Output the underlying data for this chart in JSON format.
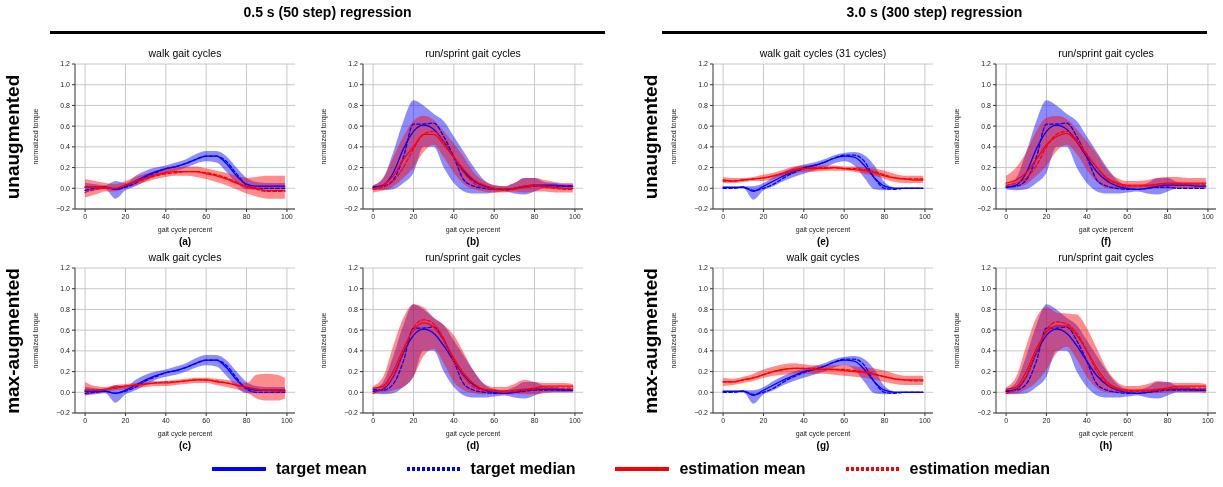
{
  "chart_data": [
    {
      "type": "line",
      "title": "walk gait cycles",
      "xlabel": "gait cycle percent",
      "ylabel": "normalized torque",
      "annotations": [
        "0.5 s (50 step) regression",
        "unaugmented",
        "(a)"
      ],
      "x": [
        0,
        5,
        10,
        15,
        20,
        25,
        30,
        35,
        40,
        45,
        50,
        55,
        60,
        65,
        70,
        75,
        80,
        85,
        90,
        95,
        99
      ],
      "xlim": [
        -5,
        104
      ],
      "xticks": [
        0,
        20,
        40,
        60,
        80,
        100
      ],
      "ylim": [
        -0.2,
        1.2
      ],
      "yticks": [
        {
          "value": -0.2,
          "label": "−0.2"
        },
        {
          "value": 0,
          "label": "0.0"
        },
        {
          "value": 0.2,
          "label": "0.2"
        },
        {
          "value": 0.4,
          "label": "0.4"
        },
        {
          "value": 0.6,
          "label": "0.6"
        },
        {
          "value": 0.8,
          "label": "0.8"
        },
        {
          "value": 1,
          "label": "1.0"
        },
        {
          "value": 1.2,
          "label": "1.2"
        }
      ],
      "grid": true,
      "series": [
        {
          "color": "#0000ff",
          "values": [
            0.01,
            0.01,
            0.01,
            -0.01,
            0.02,
            0.07,
            0.12,
            0.16,
            0.19,
            0.21,
            0.24,
            0.28,
            0.31,
            0.31,
            0.24,
            0.12,
            0.04,
            0.02,
            0.02,
            0.02,
            0.02
          ],
          "lower": [
            -0.03,
            -0.02,
            -0.01,
            -0.1,
            -0.02,
            0.02,
            0.07,
            0.12,
            0.15,
            0.17,
            0.2,
            0.24,
            0.26,
            0.25,
            0.16,
            0.05,
            -0.01,
            -0.01,
            -0.01,
            -0.01,
            -0.01
          ],
          "upper": [
            0.05,
            0.04,
            0.03,
            0.07,
            0.05,
            0.12,
            0.17,
            0.2,
            0.22,
            0.25,
            0.28,
            0.33,
            0.36,
            0.36,
            0.31,
            0.2,
            0.1,
            0.06,
            0.05,
            0.05,
            0.05
          ]
        },
        {
          "color": "#0000ff",
          "line_style": "dashed",
          "values": [
            -0.02,
            0,
            0.01,
            -0.01,
            0.01,
            0.05,
            0.11,
            0.15,
            0.19,
            0.21,
            0.24,
            0.28,
            0.31,
            0.31,
            0.26,
            0.14,
            0.03,
            0,
            0,
            0,
            0
          ]
        },
        {
          "color": "#ff0000",
          "values": [
            0.01,
            0.01,
            0.01,
            0,
            0.03,
            0.07,
            0.1,
            0.13,
            0.15,
            0.16,
            0.16,
            0.16,
            0.14,
            0.12,
            0.09,
            0.05,
            0.02,
            0,
            -0.02,
            -0.02,
            -0.02
          ],
          "lower": [
            -0.09,
            -0.06,
            -0.03,
            -0.03,
            0,
            0.03,
            0.06,
            0.09,
            0.11,
            0.12,
            0.12,
            0.11,
            0.09,
            0.06,
            0.03,
            -0.01,
            -0.05,
            -0.08,
            -0.1,
            -0.1,
            -0.1
          ],
          "upper": [
            0.09,
            0.07,
            0.05,
            0.04,
            0.07,
            0.11,
            0.14,
            0.17,
            0.19,
            0.2,
            0.21,
            0.21,
            0.19,
            0.17,
            0.15,
            0.12,
            0.1,
            0.11,
            0.12,
            0.12,
            0.12
          ]
        },
        {
          "color": "#ff0000",
          "line_style": "dashed",
          "values": [
            -0.04,
            -0.01,
            0,
            0,
            0.03,
            0.06,
            0.09,
            0.12,
            0.14,
            0.15,
            0.16,
            0.16,
            0.15,
            0.13,
            0.1,
            0.06,
            0.01,
            -0.01,
            -0.03,
            -0.03,
            -0.03
          ]
        }
      ]
    },
    {
      "type": "line",
      "title": "run/sprint gait cycles",
      "xlabel": "gait cycle percent",
      "ylabel": "normalized torque",
      "annotations": [
        "(b)"
      ],
      "x": [
        0,
        5,
        10,
        15,
        20,
        25,
        30,
        35,
        40,
        45,
        50,
        55,
        60,
        65,
        70,
        75,
        80,
        85,
        90,
        95,
        99
      ],
      "xlim": [
        -5,
        104
      ],
      "xticks": [
        0,
        20,
        40,
        60,
        80,
        100
      ],
      "ylim": [
        -0.2,
        1.2
      ],
      "yticks": [
        {
          "value": -0.2,
          "label": "−0.2"
        },
        {
          "value": 0,
          "label": "0.0"
        },
        {
          "value": 0.2,
          "label": "0.2"
        },
        {
          "value": 0.4,
          "label": "0.4"
        },
        {
          "value": 0.6,
          "label": "0.6"
        },
        {
          "value": 0.8,
          "label": "0.8"
        },
        {
          "value": 1,
          "label": "1.0"
        },
        {
          "value": 1.2,
          "label": "1.2"
        }
      ],
      "grid": true,
      "series": [
        {
          "color": "#0000ff",
          "values": [
            0.01,
            0.03,
            0.15,
            0.38,
            0.55,
            0.61,
            0.57,
            0.45,
            0.3,
            0.16,
            0.07,
            0.02,
            0,
            -0.01,
            0,
            0.02,
            0.03,
            0.03,
            0.03,
            0.02,
            0.02
          ],
          "lower": [
            -0.01,
            -0.02,
            -0.01,
            0.05,
            0.15,
            0.4,
            0.4,
            0.2,
            0.05,
            -0.03,
            -0.05,
            -0.05,
            -0.04,
            -0.03,
            -0.05,
            -0.06,
            -0.03,
            0,
            0,
            0,
            0
          ],
          "upper": [
            0.03,
            0.1,
            0.35,
            0.65,
            0.85,
            0.8,
            0.72,
            0.65,
            0.5,
            0.35,
            0.2,
            0.08,
            0.03,
            0.02,
            0.05,
            0.1,
            0.1,
            0.06,
            0.05,
            0.04,
            0.04
          ]
        },
        {
          "color": "#0000ff",
          "line_style": "dashed",
          "values": [
            0.01,
            0.02,
            0.08,
            0.3,
            0.62,
            0.62,
            0.63,
            0.5,
            0.3,
            0.08,
            0.02,
            0,
            -0.01,
            -0.01,
            0,
            0.01,
            0.02,
            0.02,
            0.02,
            0.02,
            0.02
          ]
        },
        {
          "color": "#ff0000",
          "values": [
            0,
            0.03,
            0.12,
            0.28,
            0.4,
            0.52,
            0.52,
            0.42,
            0.3,
            0.18,
            0.08,
            0.03,
            0,
            -0.01,
            0,
            0.02,
            0.03,
            0.02,
            0.01,
            0,
            0
          ],
          "lower": [
            -0.04,
            -0.02,
            0.02,
            0.1,
            0.2,
            0.35,
            0.42,
            0.3,
            0.15,
            0.04,
            -0.01,
            -0.03,
            -0.04,
            -0.04,
            -0.03,
            -0.04,
            -0.03,
            -0.03,
            -0.04,
            -0.04,
            -0.04
          ],
          "upper": [
            0.03,
            0.1,
            0.3,
            0.5,
            0.65,
            0.7,
            0.66,
            0.55,
            0.43,
            0.3,
            0.15,
            0.07,
            0.03,
            0.02,
            0.05,
            0.1,
            0.1,
            0.08,
            0.06,
            0.05,
            0.05
          ]
        },
        {
          "color": "#ff0000",
          "line_style": "dashed",
          "values": [
            -0.01,
            0.01,
            0.07,
            0.2,
            0.38,
            0.52,
            0.55,
            0.45,
            0.3,
            0.15,
            0.05,
            0.01,
            -0.01,
            -0.02,
            -0.01,
            0.01,
            0.02,
            0.01,
            0,
            -0.01,
            -0.01
          ]
        }
      ]
    },
    {
      "type": "line",
      "title": "walk gait cycles (31 cycles)",
      "xlabel": "gait cycle percent",
      "ylabel": "normalized torque",
      "annotations": [
        "3.0 s (300 step) regression",
        "unaugmented",
        "(e)"
      ],
      "x": [
        0,
        5,
        10,
        15,
        20,
        25,
        30,
        35,
        40,
        45,
        50,
        55,
        60,
        65,
        70,
        75,
        80,
        85,
        90,
        95,
        99
      ],
      "xlim": [
        -5,
        104
      ],
      "xticks": [
        0,
        20,
        40,
        60,
        80,
        100
      ],
      "ylim": [
        -0.2,
        1.2
      ],
      "yticks": [
        {
          "value": -0.2,
          "label": "−0.2"
        },
        {
          "value": 0,
          "label": "0.0"
        },
        {
          "value": 0.2,
          "label": "0.2"
        },
        {
          "value": 0.4,
          "label": "0.4"
        },
        {
          "value": 0.6,
          "label": "0.6"
        },
        {
          "value": 0.8,
          "label": "0.8"
        },
        {
          "value": 1,
          "label": "1.0"
        },
        {
          "value": 1.2,
          "label": "1.2"
        }
      ],
      "grid": true,
      "series": [
        {
          "color": "#0000ff",
          "values": [
            0.01,
            0.01,
            0.01,
            -0.03,
            0.02,
            0.07,
            0.12,
            0.16,
            0.2,
            0.22,
            0.25,
            0.29,
            0.31,
            0.3,
            0.22,
            0.1,
            0.02,
            0,
            0,
            0,
            0
          ],
          "lower": [
            0,
            0,
            0,
            -0.11,
            -0.02,
            0.02,
            0.07,
            0.11,
            0.14,
            0.17,
            0.2,
            0.24,
            0.26,
            0.22,
            0.1,
            -0.01,
            -0.02,
            -0.01,
            0,
            0,
            0
          ],
          "upper": [
            0.01,
            0.01,
            0.02,
            0.02,
            0.05,
            0.11,
            0.16,
            0.2,
            0.23,
            0.25,
            0.28,
            0.32,
            0.34,
            0.35,
            0.32,
            0.22,
            0.06,
            0.01,
            0.01,
            0.01,
            0.01
          ]
        },
        {
          "color": "#0000ff",
          "line_style": "dashed",
          "values": [
            0,
            0,
            0.01,
            -0.02,
            0,
            0.04,
            0.1,
            0.15,
            0.19,
            0.22,
            0.25,
            0.29,
            0.32,
            0.32,
            0.26,
            0.1,
            0,
            -0.01,
            0,
            0,
            0
          ]
        },
        {
          "color": "#ff0000",
          "values": [
            0.08,
            0.07,
            0.08,
            0.09,
            0.1,
            0.12,
            0.15,
            0.18,
            0.19,
            0.19,
            0.19,
            0.2,
            0.19,
            0.18,
            0.17,
            0.15,
            0.12,
            0.1,
            0.09,
            0.08,
            0.08
          ],
          "lower": [
            0.05,
            0.05,
            0.06,
            0.07,
            0.07,
            0.09,
            0.12,
            0.14,
            0.16,
            0.16,
            0.17,
            0.17,
            0.17,
            0.16,
            0.14,
            0.12,
            0.09,
            0.06,
            0.05,
            0.05,
            0.05
          ],
          "upper": [
            0.11,
            0.1,
            0.1,
            0.11,
            0.13,
            0.15,
            0.18,
            0.21,
            0.22,
            0.22,
            0.22,
            0.22,
            0.21,
            0.21,
            0.2,
            0.19,
            0.17,
            0.14,
            0.12,
            0.12,
            0.12
          ]
        },
        {
          "color": "#ff0000",
          "line_style": "dashed",
          "values": [
            0.07,
            0.07,
            0.08,
            0.09,
            0.1,
            0.12,
            0.14,
            0.17,
            0.19,
            0.2,
            0.2,
            0.2,
            0.19,
            0.19,
            0.18,
            0.16,
            0.13,
            0.1,
            0.09,
            0.09,
            0.09
          ]
        }
      ]
    },
    {
      "type": "line",
      "title": "run/sprint gait cycles",
      "xlabel": "gait cycle percent",
      "ylabel": "normalized torque",
      "annotations": [
        "(f)"
      ],
      "x": [
        0,
        5,
        10,
        15,
        20,
        25,
        30,
        35,
        40,
        45,
        50,
        55,
        60,
        65,
        70,
        75,
        80,
        85,
        90,
        95,
        99
      ],
      "xlim": [
        -5,
        104
      ],
      "xticks": [
        0,
        20,
        40,
        60,
        80,
        100
      ],
      "ylim": [
        -0.2,
        1.2
      ],
      "yticks": [
        {
          "value": -0.2,
          "label": "−0.2"
        },
        {
          "value": 0,
          "label": "0.0"
        },
        {
          "value": 0.2,
          "label": "0.2"
        },
        {
          "value": 0.4,
          "label": "0.4"
        },
        {
          "value": 0.6,
          "label": "0.6"
        },
        {
          "value": 0.8,
          "label": "0.8"
        },
        {
          "value": 1,
          "label": "1.0"
        },
        {
          "value": 1.2,
          "label": "1.2"
        }
      ],
      "grid": true,
      "series": [
        {
          "color": "#0000ff",
          "values": [
            0.01,
            0.03,
            0.15,
            0.38,
            0.55,
            0.61,
            0.57,
            0.45,
            0.3,
            0.16,
            0.07,
            0.02,
            0,
            -0.01,
            0,
            0.02,
            0.03,
            0.03,
            0.03,
            0.02,
            0.02
          ],
          "lower": [
            -0.01,
            -0.02,
            -0.01,
            0.05,
            0.15,
            0.4,
            0.4,
            0.2,
            0.05,
            -0.03,
            -0.05,
            -0.05,
            -0.04,
            -0.03,
            -0.05,
            -0.06,
            -0.03,
            0,
            0,
            0,
            0
          ],
          "upper": [
            0.03,
            0.1,
            0.35,
            0.65,
            0.85,
            0.8,
            0.72,
            0.65,
            0.5,
            0.35,
            0.2,
            0.08,
            0.03,
            0.02,
            0.05,
            0.1,
            0.1,
            0.06,
            0.05,
            0.04,
            0.04
          ]
        },
        {
          "color": "#0000ff",
          "line_style": "dashed",
          "values": [
            0.01,
            0.02,
            0.08,
            0.3,
            0.62,
            0.62,
            0.63,
            0.5,
            0.3,
            0.08,
            0.02,
            0,
            -0.01,
            -0.01,
            0,
            0.01,
            0.01,
            0,
            0,
            0,
            0
          ]
        },
        {
          "color": "#ff0000",
          "values": [
            0.05,
            0.08,
            0.15,
            0.28,
            0.42,
            0.5,
            0.53,
            0.45,
            0.32,
            0.2,
            0.1,
            0.05,
            0.03,
            0.03,
            0.03,
            0.04,
            0.05,
            0.05,
            0.05,
            0.05,
            0.05
          ],
          "lower": [
            0,
            0.01,
            0.04,
            0.12,
            0.22,
            0.36,
            0.42,
            0.33,
            0.18,
            0.06,
            0,
            -0.01,
            -0.01,
            0,
            0,
            0,
            0,
            0,
            0,
            0,
            0
          ],
          "upper": [
            0.12,
            0.2,
            0.35,
            0.55,
            0.68,
            0.7,
            0.67,
            0.57,
            0.45,
            0.33,
            0.18,
            0.1,
            0.07,
            0.07,
            0.08,
            0.1,
            0.11,
            0.11,
            0.1,
            0.1,
            0.1
          ]
        },
        {
          "color": "#ff0000",
          "line_style": "dashed",
          "values": [
            0.03,
            0.05,
            0.1,
            0.22,
            0.4,
            0.52,
            0.55,
            0.47,
            0.33,
            0.2,
            0.09,
            0.04,
            0.02,
            0.02,
            0.02,
            0.03,
            0.04,
            0.04,
            0.04,
            0.04,
            0.04
          ]
        }
      ]
    },
    {
      "type": "line",
      "title": "walk gait cycles",
      "xlabel": "gait cycle percent",
      "ylabel": "normalized torque",
      "annotations": [
        "max-augmented",
        "(c)"
      ],
      "x": [
        0,
        5,
        10,
        15,
        20,
        25,
        30,
        35,
        40,
        45,
        50,
        55,
        60,
        65,
        70,
        75,
        80,
        85,
        90,
        95,
        99
      ],
      "xlim": [
        -5,
        104
      ],
      "xticks": [
        0,
        20,
        40,
        60,
        80,
        100
      ],
      "ylim": [
        -0.2,
        1.2
      ],
      "yticks": [
        {
          "value": -0.2,
          "label": "−0.2"
        },
        {
          "value": 0,
          "label": "0.0"
        },
        {
          "value": 0.2,
          "label": "0.2"
        },
        {
          "value": 0.4,
          "label": "0.4"
        },
        {
          "value": 0.6,
          "label": "0.6"
        },
        {
          "value": 0.8,
          "label": "0.8"
        },
        {
          "value": 1,
          "label": "1.0"
        },
        {
          "value": 1.2,
          "label": "1.2"
        }
      ],
      "grid": true,
      "series": [
        {
          "color": "#0000ff",
          "values": [
            0.01,
            0.01,
            0.01,
            -0.01,
            0.02,
            0.07,
            0.12,
            0.16,
            0.19,
            0.21,
            0.24,
            0.28,
            0.31,
            0.31,
            0.24,
            0.12,
            0.04,
            0.02,
            0.02,
            0.02,
            0.02
          ],
          "lower": [
            -0.03,
            -0.02,
            -0.01,
            -0.1,
            -0.02,
            0.02,
            0.07,
            0.12,
            0.15,
            0.17,
            0.2,
            0.24,
            0.26,
            0.25,
            0.16,
            0.05,
            -0.01,
            -0.01,
            -0.01,
            -0.01,
            -0.01
          ],
          "upper": [
            0.05,
            0.04,
            0.03,
            0.07,
            0.05,
            0.12,
            0.17,
            0.2,
            0.22,
            0.25,
            0.28,
            0.33,
            0.36,
            0.36,
            0.31,
            0.2,
            0.1,
            0.06,
            0.05,
            0.05,
            0.05
          ]
        },
        {
          "color": "#0000ff",
          "line_style": "dashed",
          "values": [
            -0.01,
            0,
            0.01,
            -0.01,
            0.01,
            0.05,
            0.11,
            0.15,
            0.19,
            0.21,
            0.24,
            0.28,
            0.31,
            0.31,
            0.26,
            0.14,
            0.03,
            0,
            0,
            0,
            0
          ]
        },
        {
          "color": "#ff0000",
          "values": [
            0.02,
            0.02,
            0.03,
            0.05,
            0.06,
            0.07,
            0.08,
            0.09,
            0.09,
            0.1,
            0.11,
            0.12,
            0.12,
            0.1,
            0.09,
            0.07,
            0.05,
            0.03,
            0.02,
            0.02,
            0.02
          ],
          "lower": [
            -0.03,
            -0.01,
            0,
            0.02,
            0.03,
            0.04,
            0.05,
            0.06,
            0.06,
            0.07,
            0.08,
            0.09,
            0.09,
            0.07,
            0.05,
            0.03,
            0,
            -0.06,
            -0.08,
            -0.08,
            -0.06
          ],
          "upper": [
            0.1,
            0.06,
            0.05,
            0.07,
            0.08,
            0.09,
            0.1,
            0.11,
            0.11,
            0.12,
            0.13,
            0.14,
            0.14,
            0.13,
            0.12,
            0.1,
            0.09,
            0.17,
            0.18,
            0.17,
            0.14
          ]
        },
        {
          "color": "#ff0000",
          "line_style": "dashed",
          "values": [
            0.02,
            0.02,
            0.03,
            0.04,
            0.06,
            0.07,
            0.08,
            0.09,
            0.1,
            0.1,
            0.11,
            0.12,
            0.12,
            0.11,
            0.09,
            0.07,
            0.05,
            0.03,
            0.02,
            0.01,
            0.01
          ]
        }
      ]
    },
    {
      "type": "line",
      "title": "run/sprint gait cycles",
      "xlabel": "gait cycle percent",
      "ylabel": "normalized torque",
      "annotations": [
        "(d)"
      ],
      "x": [
        0,
        5,
        10,
        15,
        20,
        25,
        30,
        35,
        40,
        45,
        50,
        55,
        60,
        65,
        70,
        75,
        80,
        85,
        90,
        95,
        99
      ],
      "xlim": [
        -5,
        104
      ],
      "xticks": [
        0,
        20,
        40,
        60,
        80,
        100
      ],
      "ylim": [
        -0.2,
        1.2
      ],
      "yticks": [
        {
          "value": -0.2,
          "label": "−0.2"
        },
        {
          "value": 0,
          "label": "0.0"
        },
        {
          "value": 0.2,
          "label": "0.2"
        },
        {
          "value": 0.4,
          "label": "0.4"
        },
        {
          "value": 0.6,
          "label": "0.6"
        },
        {
          "value": 0.8,
          "label": "0.8"
        },
        {
          "value": 1,
          "label": "1.0"
        },
        {
          "value": 1.2,
          "label": "1.2"
        }
      ],
      "grid": true,
      "series": [
        {
          "color": "#0000ff",
          "values": [
            0.01,
            0.03,
            0.15,
            0.38,
            0.55,
            0.61,
            0.57,
            0.45,
            0.3,
            0.16,
            0.07,
            0.02,
            0,
            -0.01,
            0,
            0.02,
            0.03,
            0.03,
            0.03,
            0.02,
            0.02
          ],
          "lower": [
            -0.01,
            -0.02,
            -0.01,
            0.05,
            0.15,
            0.4,
            0.4,
            0.2,
            0.05,
            -0.03,
            -0.05,
            -0.05,
            -0.04,
            -0.03,
            -0.05,
            -0.06,
            -0.03,
            0,
            0,
            0,
            0
          ],
          "upper": [
            0.03,
            0.1,
            0.35,
            0.65,
            0.85,
            0.8,
            0.72,
            0.65,
            0.5,
            0.35,
            0.2,
            0.08,
            0.03,
            0.02,
            0.05,
            0.1,
            0.1,
            0.06,
            0.05,
            0.04,
            0.04
          ]
        },
        {
          "color": "#0000ff",
          "line_style": "dashed",
          "values": [
            0.03,
            0.02,
            0.08,
            0.3,
            0.62,
            0.62,
            0.63,
            0.5,
            0.3,
            0.08,
            0.02,
            0,
            -0.01,
            -0.01,
            0,
            0.01,
            0.02,
            0.02,
            0.02,
            0.02,
            0.02
          ]
        },
        {
          "color": "#ff0000",
          "values": [
            0.04,
            0.06,
            0.2,
            0.42,
            0.6,
            0.67,
            0.63,
            0.5,
            0.33,
            0.18,
            0.08,
            0.03,
            0.02,
            0.01,
            0.02,
            0.03,
            0.04,
            0.06,
            0.06,
            0.06,
            0.06
          ],
          "lower": [
            0,
            0,
            0.02,
            0.05,
            0.15,
            0.35,
            0.42,
            0.28,
            0.1,
            0.02,
            -0.01,
            -0.02,
            -0.02,
            -0.02,
            -0.02,
            -0.02,
            -0.02,
            -0.01,
            0,
            0,
            0
          ],
          "upper": [
            0.06,
            0.15,
            0.45,
            0.72,
            0.85,
            0.82,
            0.72,
            0.65,
            0.55,
            0.38,
            0.2,
            0.08,
            0.05,
            0.05,
            0.08,
            0.12,
            0.1,
            0.09,
            0.09,
            0.09,
            0.08
          ]
        },
        {
          "color": "#ff0000",
          "line_style": "dashed",
          "values": [
            -0.01,
            0.04,
            0.15,
            0.38,
            0.62,
            0.7,
            0.66,
            0.52,
            0.3,
            0.15,
            0.05,
            0.02,
            0.01,
            0,
            0.01,
            0.02,
            0.03,
            0.04,
            0.04,
            0.04,
            0.04
          ]
        }
      ]
    },
    {
      "type": "line",
      "title": "walk gait cycles",
      "xlabel": "gait cycle percent",
      "ylabel": "normalized torque",
      "annotations": [
        "max-augmented",
        "(g)"
      ],
      "x": [
        0,
        5,
        10,
        15,
        20,
        25,
        30,
        35,
        40,
        45,
        50,
        55,
        60,
        65,
        70,
        75,
        80,
        85,
        90,
        95,
        99
      ],
      "xlim": [
        -5,
        104
      ],
      "xticks": [
        0,
        20,
        40,
        60,
        80,
        100
      ],
      "ylim": [
        -0.2,
        1.2
      ],
      "yticks": [
        {
          "value": -0.2,
          "label": "−0.2"
        },
        {
          "value": 0,
          "label": "0.0"
        },
        {
          "value": 0.2,
          "label": "0.2"
        },
        {
          "value": 0.4,
          "label": "0.4"
        },
        {
          "value": 0.6,
          "label": "0.6"
        },
        {
          "value": 0.8,
          "label": "0.8"
        },
        {
          "value": 1,
          "label": "1.0"
        },
        {
          "value": 1.2,
          "label": "1.2"
        }
      ],
      "grid": true,
      "series": [
        {
          "color": "#0000ff",
          "values": [
            0.01,
            0.01,
            0.01,
            -0.03,
            0.02,
            0.07,
            0.12,
            0.16,
            0.2,
            0.22,
            0.25,
            0.29,
            0.31,
            0.3,
            0.22,
            0.1,
            0.02,
            0,
            0,
            0,
            0
          ],
          "lower": [
            0,
            0,
            0,
            -0.11,
            -0.02,
            0.02,
            0.07,
            0.11,
            0.14,
            0.17,
            0.2,
            0.24,
            0.26,
            0.22,
            0.1,
            -0.01,
            -0.02,
            -0.01,
            0,
            0,
            0
          ],
          "upper": [
            0.01,
            0.01,
            0.02,
            0.02,
            0.05,
            0.11,
            0.16,
            0.2,
            0.23,
            0.25,
            0.28,
            0.32,
            0.34,
            0.35,
            0.32,
            0.22,
            0.06,
            0.01,
            0.01,
            0.01,
            0.01
          ]
        },
        {
          "color": "#0000ff",
          "line_style": "dashed",
          "values": [
            0,
            0,
            0.01,
            -0.02,
            0,
            0.04,
            0.1,
            0.15,
            0.19,
            0.22,
            0.25,
            0.29,
            0.32,
            0.32,
            0.26,
            0.1,
            0,
            -0.01,
            0,
            0,
            0
          ]
        },
        {
          "color": "#ff0000",
          "values": [
            0.1,
            0.1,
            0.12,
            0.14,
            0.17,
            0.2,
            0.22,
            0.23,
            0.23,
            0.22,
            0.22,
            0.22,
            0.21,
            0.2,
            0.19,
            0.17,
            0.15,
            0.13,
            0.12,
            0.12,
            0.12
          ],
          "lower": [
            0.06,
            0.07,
            0.09,
            0.11,
            0.14,
            0.16,
            0.17,
            0.18,
            0.18,
            0.18,
            0.18,
            0.17,
            0.16,
            0.15,
            0.14,
            0.12,
            0.1,
            0.08,
            0.07,
            0.07,
            0.07
          ],
          "upper": [
            0.14,
            0.13,
            0.15,
            0.18,
            0.22,
            0.25,
            0.27,
            0.28,
            0.27,
            0.26,
            0.26,
            0.26,
            0.26,
            0.25,
            0.24,
            0.23,
            0.21,
            0.18,
            0.16,
            0.16,
            0.16
          ]
        },
        {
          "color": "#ff0000",
          "line_style": "dashed",
          "values": [
            0.1,
            0.1,
            0.12,
            0.14,
            0.17,
            0.2,
            0.22,
            0.23,
            0.23,
            0.23,
            0.22,
            0.22,
            0.22,
            0.21,
            0.2,
            0.18,
            0.15,
            0.13,
            0.12,
            0.11,
            0.11
          ]
        }
      ]
    },
    {
      "type": "line",
      "title": "run/sprint gait cycles",
      "xlabel": "gait cycle percent",
      "ylabel": "normalized torque",
      "annotations": [
        "(h)"
      ],
      "legend": "bottom",
      "x": [
        0,
        5,
        10,
        15,
        20,
        25,
        30,
        35,
        40,
        45,
        50,
        55,
        60,
        65,
        70,
        75,
        80,
        85,
        90,
        95,
        99
      ],
      "xlim": [
        -5,
        104
      ],
      "xticks": [
        0,
        20,
        40,
        60,
        80,
        100
      ],
      "ylim": [
        -0.2,
        1.2
      ],
      "yticks": [
        {
          "value": -0.2,
          "label": "−0.2"
        },
        {
          "value": 0,
          "label": "0.0"
        },
        {
          "value": 0.2,
          "label": "0.2"
        },
        {
          "value": 0.4,
          "label": "0.4"
        },
        {
          "value": 0.6,
          "label": "0.6"
        },
        {
          "value": 0.8,
          "label": "0.8"
        },
        {
          "value": 1,
          "label": "1.0"
        },
        {
          "value": 1.2,
          "label": "1.2"
        }
      ],
      "grid": true,
      "series": [
        {
          "name": "target mean",
          "color": "#0000ff",
          "values": [
            0.01,
            0.03,
            0.15,
            0.38,
            0.55,
            0.61,
            0.57,
            0.45,
            0.3,
            0.16,
            0.07,
            0.02,
            0,
            -0.01,
            0,
            0.02,
            0.03,
            0.03,
            0.03,
            0.02,
            0.02
          ],
          "lower": [
            -0.01,
            -0.02,
            -0.01,
            0.05,
            0.15,
            0.4,
            0.4,
            0.2,
            0.05,
            -0.03,
            -0.05,
            -0.05,
            -0.04,
            -0.03,
            -0.05,
            -0.06,
            -0.03,
            0,
            0,
            0,
            0
          ],
          "upper": [
            0.03,
            0.1,
            0.35,
            0.65,
            0.85,
            0.8,
            0.72,
            0.65,
            0.5,
            0.35,
            0.2,
            0.08,
            0.03,
            0.02,
            0.05,
            0.1,
            0.1,
            0.06,
            0.05,
            0.04,
            0.04
          ]
        },
        {
          "name": "target median",
          "color": "#0000ff",
          "line_style": "dashed",
          "values": [
            0.01,
            0.02,
            0.08,
            0.3,
            0.62,
            0.62,
            0.63,
            0.5,
            0.3,
            0.08,
            0.02,
            0,
            -0.01,
            -0.01,
            0,
            0.01,
            0.02,
            0.02,
            0.02,
            0.02,
            0.02
          ]
        },
        {
          "name": "estimation mean",
          "color": "#ff0000",
          "values": [
            0.03,
            0.05,
            0.2,
            0.42,
            0.58,
            0.64,
            0.64,
            0.55,
            0.4,
            0.23,
            0.1,
            0.04,
            0.02,
            0.02,
            0.02,
            0.03,
            0.04,
            0.06,
            0.06,
            0.06,
            0.06
          ],
          "lower": [
            -0.02,
            -0.01,
            0.03,
            0.1,
            0.22,
            0.38,
            0.44,
            0.32,
            0.15,
            0.04,
            0,
            -0.01,
            -0.01,
            -0.01,
            -0.01,
            -0.01,
            0,
            0,
            0,
            0,
            -0.01
          ],
          "upper": [
            0.05,
            0.15,
            0.45,
            0.72,
            0.82,
            0.77,
            0.76,
            0.75,
            0.62,
            0.42,
            0.22,
            0.1,
            0.06,
            0.06,
            0.08,
            0.11,
            0.1,
            0.09,
            0.09,
            0.09,
            0.08
          ]
        },
        {
          "name": "estimation median",
          "color": "#ff0000",
          "line_style": "dashed",
          "values": [
            -0.01,
            0.03,
            0.15,
            0.38,
            0.6,
            0.68,
            0.66,
            0.57,
            0.4,
            0.2,
            0.08,
            0.03,
            0.01,
            0.01,
            0.01,
            0.02,
            0.03,
            0.04,
            0.04,
            0.04,
            0.04
          ]
        }
      ]
    }
  ]
}
